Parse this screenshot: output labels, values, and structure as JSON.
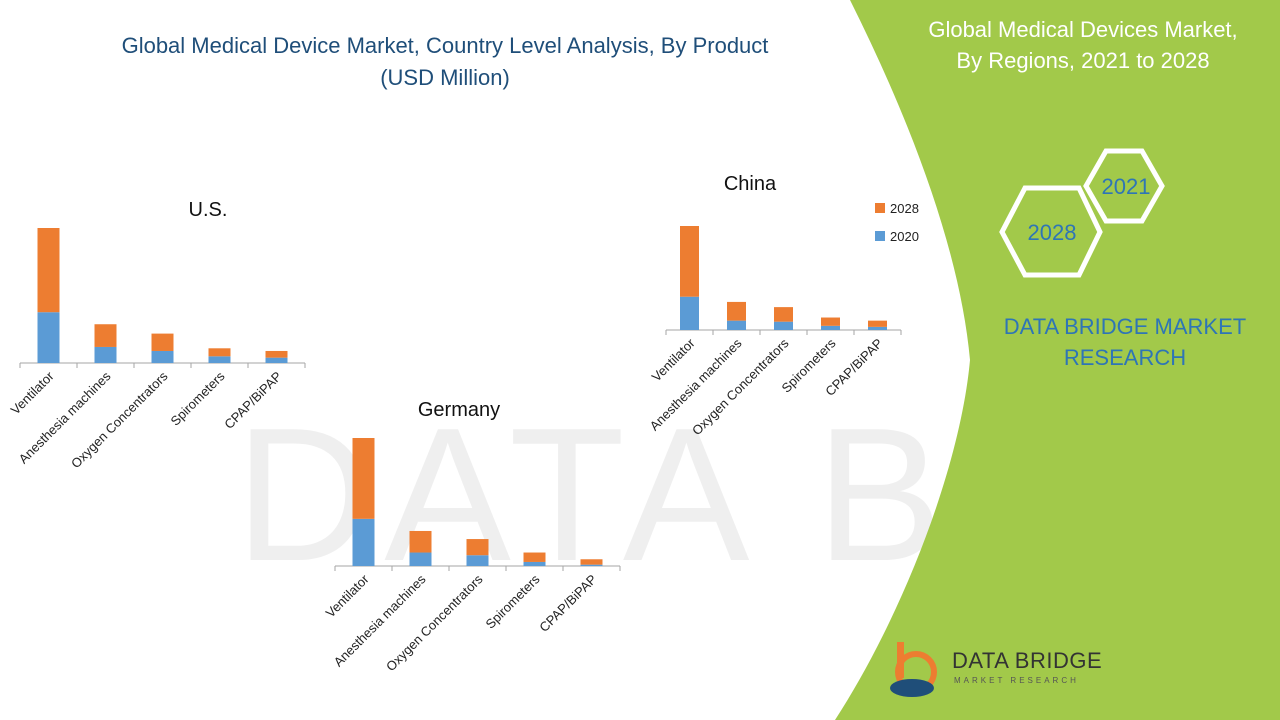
{
  "title_line1": "Global Medical Device Market, Country Level Analysis, By Product",
  "title_line2": "(USD Million)",
  "side_title_line1": "Global Medical Devices Market,",
  "side_title_line2": "By Regions, 2021 to 2028",
  "hex_labels": [
    "2021",
    "2028"
  ],
  "brand_line1": "DATA BRIDGE MARKET",
  "brand_line2": "RESEARCH",
  "logo_text": "DATA BRIDGE",
  "logo_subtext": "MARKET RESEARCH",
  "watermark_text": "DATA BRIDGE",
  "colors": {
    "s2020": "#5b9bd5",
    "s2028": "#ed7d31",
    "green": "#a2c94a",
    "title": "#1f4e79"
  },
  "chart_data": [
    {
      "type": "bar",
      "stacked": true,
      "title": "U.S.",
      "categories": [
        "Ventilator",
        "Anesthesia machines",
        "Oxygen Concentrators",
        "Spirometers",
        "CPAP/BiPAP"
      ],
      "series": [
        {
          "name": "2020",
          "values": [
            38,
            12,
            9,
            5,
            4
          ]
        },
        {
          "name": "2028",
          "values": [
            63,
            17,
            13,
            6,
            5
          ]
        }
      ],
      "ylim": [
        0,
        101
      ]
    },
    {
      "type": "bar",
      "stacked": true,
      "title": "China",
      "categories": [
        "Ventilator",
        "Anesthesia machines",
        "Oxygen Concentrators",
        "Spirometers",
        "CPAP/BiPAP"
      ],
      "series": [
        {
          "name": "2020",
          "values": [
            32,
            9,
            8,
            4,
            3
          ]
        },
        {
          "name": "2028",
          "values": [
            68,
            18,
            14,
            8,
            6
          ]
        }
      ],
      "legend": [
        "2028",
        "2020"
      ],
      "ylim": [
        0,
        100
      ]
    },
    {
      "type": "bar",
      "stacked": true,
      "title": "Germany",
      "categories": [
        "Ventilator",
        "Anesthesia machines",
        "Oxygen Concentrators",
        "Spirometers",
        "CPAP/BiPAP"
      ],
      "series": [
        {
          "name": "2020",
          "values": [
            35,
            10,
            8,
            3,
            1
          ]
        },
        {
          "name": "2028",
          "values": [
            60,
            16,
            12,
            7,
            4
          ]
        }
      ],
      "ylim": [
        0,
        95
      ]
    }
  ]
}
